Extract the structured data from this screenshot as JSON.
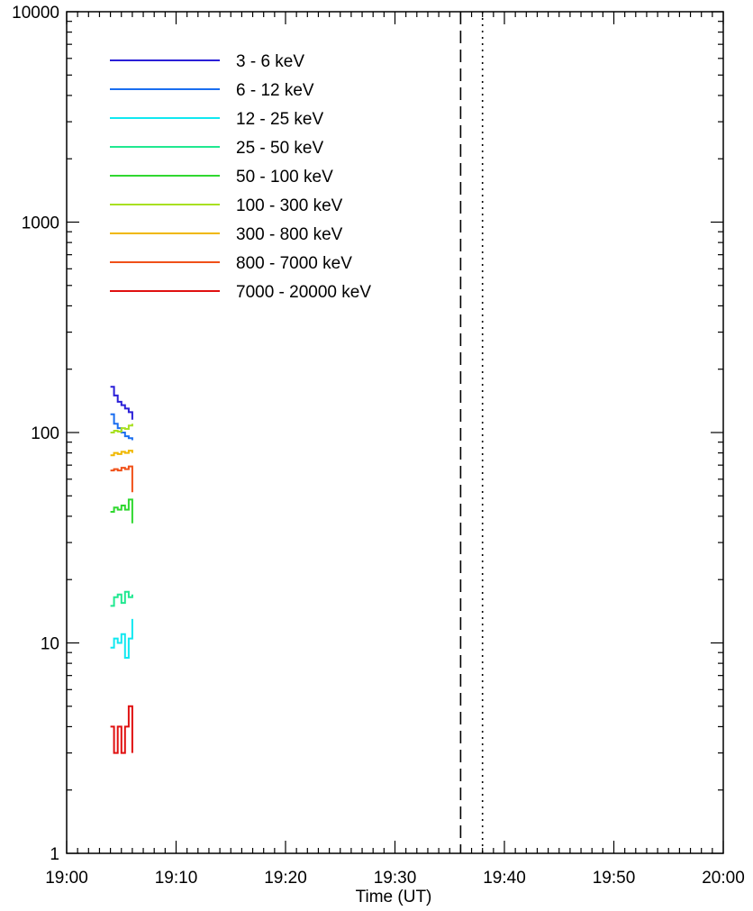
{
  "chart_data": {
    "type": "line",
    "xlabel": "Time (UT)",
    "ylabel": "",
    "title": "",
    "x_range": [
      "19:00",
      "20:00"
    ],
    "y_range": [
      1,
      10000
    ],
    "y_scale": "log",
    "x_tick_labels": [
      "19:00",
      "19:10",
      "19:20",
      "19:30",
      "19:40",
      "19:50",
      "20:00"
    ],
    "y_tick_labels": [
      "1",
      "10",
      "100",
      "1000",
      "10000"
    ],
    "grid": false,
    "legend_position": "top-left",
    "vertical_markers": [
      {
        "time": "19:36",
        "style": "dashed"
      },
      {
        "time": "19:38",
        "style": "dotted"
      }
    ],
    "series": [
      {
        "name": "3 - 6 keV",
        "color": "#2a1fd8",
        "x": [
          "19:04:00",
          "19:04:20",
          "19:04:40",
          "19:05:00",
          "19:05:20",
          "19:05:40",
          "19:06:00"
        ],
        "y": [
          165,
          150,
          140,
          135,
          130,
          125,
          115
        ]
      },
      {
        "name": "6 - 12 keV",
        "color": "#1a6ef0",
        "x": [
          "19:04:00",
          "19:04:20",
          "19:04:40",
          "19:05:00",
          "19:05:20",
          "19:05:40",
          "19:06:00"
        ],
        "y": [
          122,
          110,
          105,
          100,
          96,
          94,
          92
        ]
      },
      {
        "name": "12 - 25 keV",
        "color": "#10e8f0",
        "x": [
          "19:04:00",
          "19:04:20",
          "19:04:40",
          "19:05:00",
          "19:05:20",
          "19:05:40",
          "19:06:00"
        ],
        "y": [
          9.5,
          10.5,
          10,
          11,
          8.5,
          10.5,
          13
        ]
      },
      {
        "name": "25 - 50 keV",
        "color": "#20e890",
        "x": [
          "19:04:00",
          "19:04:20",
          "19:04:40",
          "19:05:00",
          "19:05:20",
          "19:05:40",
          "19:06:00"
        ],
        "y": [
          15,
          16.5,
          17,
          15.5,
          17.5,
          16.5,
          17
        ]
      },
      {
        "name": "50 - 100 keV",
        "color": "#30d830",
        "x": [
          "19:04:00",
          "19:04:20",
          "19:04:40",
          "19:05:00",
          "19:05:20",
          "19:05:40",
          "19:06:00"
        ],
        "y": [
          42,
          44,
          43,
          45,
          43,
          48,
          37
        ]
      },
      {
        "name": "100 - 300 keV",
        "color": "#a8e020",
        "x": [
          "19:04:00",
          "19:04:20",
          "19:04:40",
          "19:05:00",
          "19:05:20",
          "19:05:40",
          "19:06:00"
        ],
        "y": [
          100,
          102,
          101,
          105,
          104,
          108,
          110
        ]
      },
      {
        "name": "300 - 800 keV",
        "color": "#f0b800",
        "x": [
          "19:04:00",
          "19:04:20",
          "19:04:40",
          "19:05:00",
          "19:05:20",
          "19:05:40",
          "19:06:00"
        ],
        "y": [
          78,
          80,
          79,
          81,
          80,
          82,
          80
        ]
      },
      {
        "name": "800 - 7000 keV",
        "color": "#f05018",
        "x": [
          "19:04:00",
          "19:04:20",
          "19:04:40",
          "19:05:00",
          "19:05:20",
          "19:05:40",
          "19:06:00"
        ],
        "y": [
          66,
          67,
          66,
          68,
          67,
          69,
          52
        ]
      },
      {
        "name": "7000 - 20000 keV",
        "color": "#e01010",
        "x": [
          "19:04:00",
          "19:04:20",
          "19:04:40",
          "19:05:00",
          "19:05:20",
          "19:05:40",
          "19:06:00"
        ],
        "y": [
          4,
          3,
          4,
          3,
          4,
          5,
          3
        ]
      }
    ]
  }
}
